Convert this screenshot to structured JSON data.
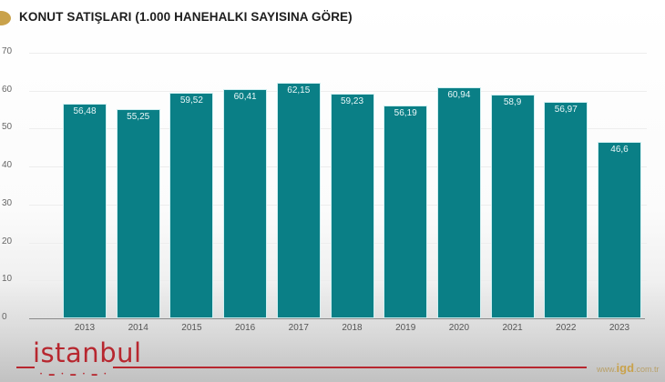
{
  "header": {
    "title": "KONUT SATIŞLARI (1.000 HANEHALKI SAYISINA GÖRE)"
  },
  "footer": {
    "logo_text": "istanbul",
    "logo_dots": "• ▬ • ▬ • ▬ •",
    "website_prefix": "www.",
    "website_brand": "igd",
    "website_suffix": ".com.tr"
  },
  "colors": {
    "bar": "#0a7f86",
    "accent_gold": "#c9a24b",
    "logo_red": "#b7272f"
  },
  "chart_data": {
    "type": "bar",
    "title": "KONUT SATIŞLARI (1.000 HANEHALKI SAYISINA GÖRE)",
    "xlabel": "",
    "ylabel": "",
    "categories": [
      "2013",
      "2014",
      "2015",
      "2016",
      "2017",
      "2018",
      "2019",
      "2020",
      "2021",
      "2022",
      "2023"
    ],
    "values": [
      56.48,
      55.25,
      59.52,
      60.41,
      62.15,
      59.23,
      56.19,
      60.94,
      58.9,
      56.97,
      46.6
    ],
    "value_labels": [
      "56,48",
      "55,25",
      "59,52",
      "60,41",
      "62,15",
      "59,23",
      "56,19",
      "60,94",
      "58,9",
      "56,97",
      "46,6"
    ],
    "ylim": [
      0,
      70
    ],
    "yticks": [
      "0",
      "10",
      "20",
      "30",
      "40",
      "50",
      "60",
      "70"
    ],
    "grid": true,
    "legend": "none"
  }
}
